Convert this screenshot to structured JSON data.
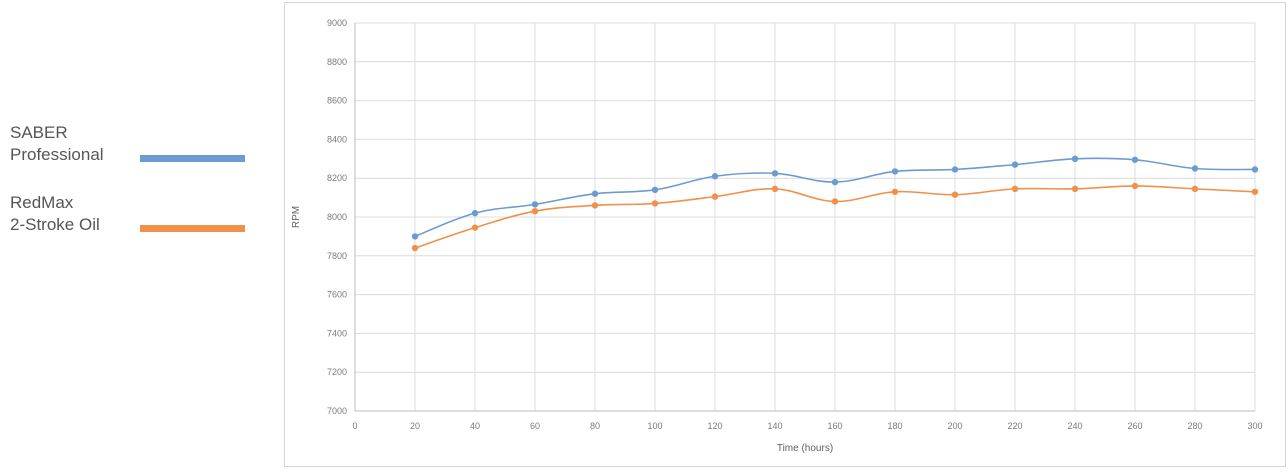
{
  "legend": {
    "items": [
      {
        "line1": "SABER",
        "line2": "Professional",
        "color": "#6b9bd1"
      },
      {
        "line1": "RedMax",
        "line2": "2-Stroke Oil",
        "color": "#f0904a"
      }
    ]
  },
  "chart_data": {
    "type": "line",
    "title": "",
    "xlabel": "Time (hours)",
    "ylabel": "RPM",
    "xlim": [
      0,
      300
    ],
    "ylim": [
      7000,
      9000
    ],
    "x_ticks": [
      0,
      20,
      40,
      60,
      80,
      100,
      120,
      140,
      160,
      180,
      200,
      220,
      240,
      260,
      280,
      300
    ],
    "y_ticks": [
      7000,
      7200,
      7400,
      7600,
      7800,
      8000,
      8200,
      8400,
      8600,
      8800,
      9000
    ],
    "y_tick_labels": [
      "7000",
      "7200",
      "7400",
      "7600",
      "7800",
      "8000",
      "8200",
      "8400",
      "8600",
      "8800",
      "9000"
    ],
    "grid": true,
    "x": [
      20,
      40,
      60,
      80,
      100,
      120,
      140,
      160,
      180,
      200,
      220,
      240,
      260,
      280,
      300
    ],
    "series": [
      {
        "name": "SABER Professional",
        "color": "#6b9bd1",
        "values": [
          7900,
          8020,
          8065,
          8120,
          8140,
          8210,
          8225,
          8180,
          8235,
          8245,
          8270,
          8300,
          8295,
          8250,
          8245
        ]
      },
      {
        "name": "RedMax 2-Stroke Oil",
        "color": "#f0904a",
        "values": [
          7840,
          7945,
          8030,
          8060,
          8070,
          8105,
          8145,
          8080,
          8130,
          8115,
          8145,
          8145,
          8160,
          8145,
          8130
        ]
      }
    ]
  }
}
